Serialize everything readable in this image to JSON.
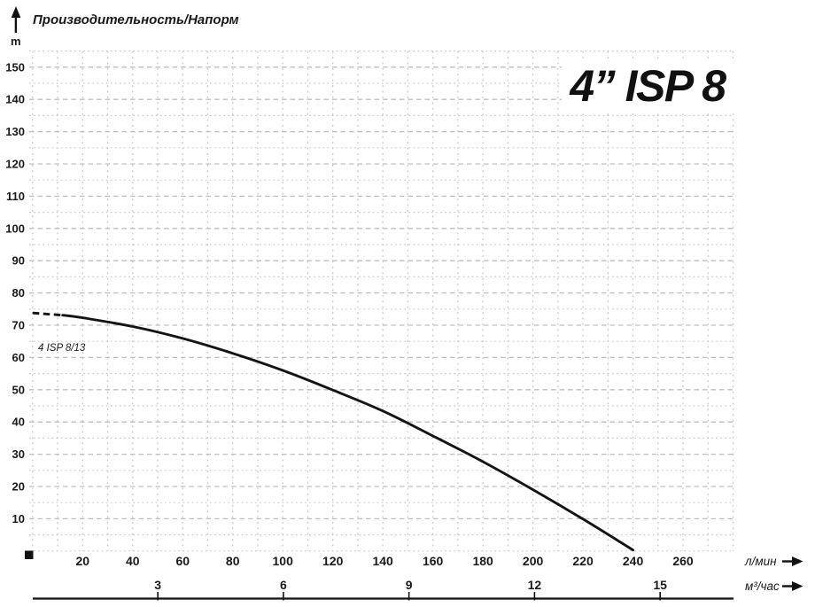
{
  "chart_data": {
    "type": "line",
    "title": "4” ISP 8",
    "y_title": "Производительность/Напорм",
    "y_unit": "m",
    "ylim": [
      0,
      155
    ],
    "y_ticks": [
      10,
      20,
      30,
      40,
      50,
      60,
      70,
      80,
      90,
      100,
      110,
      120,
      130,
      140,
      150
    ],
    "x_primary": {
      "label": "л/мин",
      "ticks": [
        20,
        40,
        60,
        80,
        100,
        120,
        140,
        160,
        180,
        200,
        220,
        240,
        260
      ],
      "xlim": [
        0,
        280
      ]
    },
    "x_secondary": {
      "label": "м³/час",
      "ticks": [
        3,
        6,
        9,
        12,
        15
      ]
    },
    "grid": "dashed",
    "legend_position": "none",
    "series": [
      {
        "name": "4 ISP 8/13",
        "x": [
          0,
          12,
          20,
          40,
          60,
          80,
          100,
          120,
          140,
          160,
          180,
          200,
          220,
          240
        ],
        "y": [
          73.8,
          73.1,
          72.3,
          69.6,
          65.9,
          61.3,
          56.0,
          49.9,
          43.4,
          35.7,
          27.7,
          19.0,
          9.9,
          0.3
        ],
        "dashed_until_x": 12
      }
    ]
  },
  "colors": {
    "curve": "#141414",
    "grid_major": "#bfbfbf",
    "grid_minor": "#cbcbcb",
    "grid_vertical": "#c6c6c6",
    "text": "#1a1a1a",
    "series_label": "#a1a1a1",
    "axis_line": "#111111"
  }
}
